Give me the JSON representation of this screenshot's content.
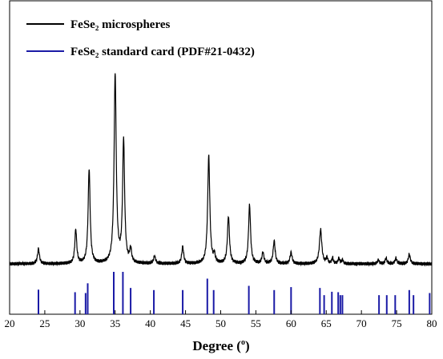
{
  "chart_data": {
    "type": "line",
    "title": "",
    "xlabel": "Degree (°)",
    "xlabel_text": "Degree (",
    "xlabel_degree": "o",
    "xlabel_close": ")",
    "ylabel": "",
    "xlim": [
      20,
      80
    ],
    "x_ticks": [
      20,
      25,
      30,
      35,
      40,
      45,
      50,
      55,
      60,
      65,
      70,
      75,
      80
    ],
    "grid": false,
    "legend_position": "top-left",
    "series": [
      {
        "name": "FeSe₂ microspheres",
        "color": "#000000",
        "kind": "line",
        "baseline": 0.05,
        "peaks": [
          {
            "x": 24.1,
            "h": 0.08,
            "w": 0.16
          },
          {
            "x": 29.4,
            "h": 0.18,
            "w": 0.16
          },
          {
            "x": 31.3,
            "h": 0.5,
            "w": 0.17
          },
          {
            "x": 35.0,
            "h": 1.0,
            "w": 0.18
          },
          {
            "x": 36.2,
            "h": 0.65,
            "w": 0.17
          },
          {
            "x": 37.2,
            "h": 0.07,
            "w": 0.16
          },
          {
            "x": 40.6,
            "h": 0.04,
            "w": 0.16
          },
          {
            "x": 44.6,
            "h": 0.09,
            "w": 0.16
          },
          {
            "x": 48.3,
            "h": 0.57,
            "w": 0.18
          },
          {
            "x": 49.1,
            "h": 0.04,
            "w": 0.14
          },
          {
            "x": 51.1,
            "h": 0.25,
            "w": 0.17
          },
          {
            "x": 54.1,
            "h": 0.31,
            "w": 0.17
          },
          {
            "x": 56.0,
            "h": 0.06,
            "w": 0.16
          },
          {
            "x": 57.6,
            "h": 0.12,
            "w": 0.17
          },
          {
            "x": 60.0,
            "h": 0.06,
            "w": 0.17
          },
          {
            "x": 64.2,
            "h": 0.18,
            "w": 0.2
          },
          {
            "x": 65.1,
            "h": 0.03,
            "w": 0.13
          },
          {
            "x": 65.9,
            "h": 0.03,
            "w": 0.13
          },
          {
            "x": 66.8,
            "h": 0.03,
            "w": 0.13
          },
          {
            "x": 67.3,
            "h": 0.02,
            "w": 0.13
          },
          {
            "x": 72.4,
            "h": 0.02,
            "w": 0.15
          },
          {
            "x": 73.5,
            "h": 0.03,
            "w": 0.15
          },
          {
            "x": 74.9,
            "h": 0.03,
            "w": 0.15
          },
          {
            "x": 76.8,
            "h": 0.05,
            "w": 0.17
          }
        ]
      },
      {
        "name": "FeSe₂ standard card (PDF#21-0432)",
        "color": "#1a1aa6",
        "kind": "sticks",
        "sticks": [
          {
            "x": 24.1,
            "h": 0.58
          },
          {
            "x": 29.3,
            "h": 0.52
          },
          {
            "x": 30.8,
            "h": 0.5
          },
          {
            "x": 31.1,
            "h": 0.73
          },
          {
            "x": 34.8,
            "h": 1.0
          },
          {
            "x": 36.1,
            "h": 1.0
          },
          {
            "x": 37.2,
            "h": 0.62
          },
          {
            "x": 40.5,
            "h": 0.57
          },
          {
            "x": 44.6,
            "h": 0.57
          },
          {
            "x": 48.1,
            "h": 0.84
          },
          {
            "x": 49.0,
            "h": 0.57
          },
          {
            "x": 54.0,
            "h": 0.67
          },
          {
            "x": 57.6,
            "h": 0.57
          },
          {
            "x": 60.0,
            "h": 0.64
          },
          {
            "x": 64.1,
            "h": 0.62
          },
          {
            "x": 64.7,
            "h": 0.45
          },
          {
            "x": 65.8,
            "h": 0.53
          },
          {
            "x": 66.7,
            "h": 0.52
          },
          {
            "x": 67.0,
            "h": 0.45
          },
          {
            "x": 67.3,
            "h": 0.45
          },
          {
            "x": 72.5,
            "h": 0.45
          },
          {
            "x": 73.6,
            "h": 0.45
          },
          {
            "x": 74.8,
            "h": 0.45
          },
          {
            "x": 76.8,
            "h": 0.57
          },
          {
            "x": 77.4,
            "h": 0.45
          },
          {
            "x": 79.7,
            "h": 0.5
          }
        ]
      }
    ]
  }
}
